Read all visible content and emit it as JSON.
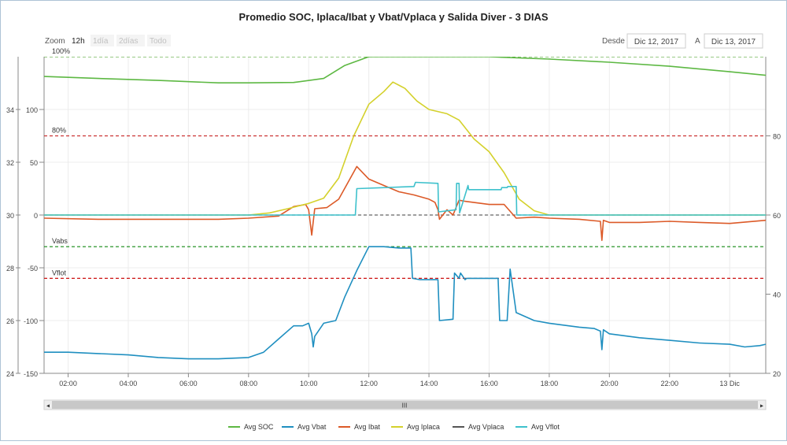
{
  "chart_data": {
    "type": "line",
    "title": "Promedio SOC, Iplaca/Ibat y Vbat/Vplaca y Salida Diver - 3 DIAS",
    "zoom": {
      "label": "Zoom",
      "options": [
        "12h",
        "1día",
        "2días",
        "Todo"
      ],
      "selected": "12h"
    },
    "range": {
      "from_label": "Desde",
      "from": "Dic 12, 2017",
      "to_label": "A",
      "to": "Dic 13, 2017"
    },
    "x_ticks": [
      "02:00",
      "04:00",
      "06:00",
      "08:00",
      "10:00",
      "12:00",
      "14:00",
      "16:00",
      "18:00",
      "20:00",
      "22:00",
      "13 Dic"
    ],
    "x_tick_hours": [
      2,
      4,
      6,
      8,
      10,
      12,
      14,
      16,
      18,
      20,
      22,
      24
    ],
    "xlim_hours": [
      1.2,
      25.2
    ],
    "y_axes": {
      "voltage": {
        "ylim": [
          24,
          36
        ],
        "ticks": [
          24,
          26,
          28,
          30,
          32,
          34
        ]
      },
      "current": {
        "ylim": [
          -150,
          150
        ],
        "ticks": [
          -150,
          -100,
          -50,
          0,
          50,
          100
        ]
      },
      "soc": {
        "ylim": [
          20,
          100
        ],
        "ticks": [
          20,
          40,
          60,
          80
        ]
      }
    },
    "plot_lines": [
      {
        "label": "100%",
        "axis": "soc",
        "value": 100,
        "color": "#5aaa3c"
      },
      {
        "label": "80%",
        "axis": "soc",
        "value": 80,
        "color": "#cc3333"
      },
      {
        "label": "Vabs",
        "axis": "voltage",
        "value": 28.8,
        "color": "#118811"
      },
      {
        "label": "Vflot",
        "axis": "voltage",
        "value": 27.6,
        "color": "#cc1111"
      },
      {
        "label": "",
        "axis": "current",
        "value": 0,
        "color": "#666666"
      }
    ],
    "series": [
      {
        "name": "Avg SOC",
        "color": "#5db843",
        "axis": "soc",
        "x": [
          1.2,
          3,
          5,
          7,
          8,
          9.5,
          10.5,
          11.2,
          12,
          12.5,
          13,
          16,
          18,
          20,
          22,
          24,
          25.2
        ],
        "y": [
          95,
          94.5,
          94,
          93.4,
          93.4,
          93.5,
          94.5,
          97.8,
          100,
          100,
          100,
          100,
          99.4,
          98.6,
          97.6,
          96.2,
          95.3
        ]
      },
      {
        "name": "Avg Vbat",
        "color": "#1f8fc0",
        "axis": "voltage",
        "x": [
          1.2,
          2,
          3,
          4,
          5,
          6,
          7,
          8,
          8.5,
          9,
          9.5,
          9.8,
          10,
          10.1,
          10.15,
          10.2,
          10.5,
          10.9,
          11.2,
          11.6,
          12,
          12.5,
          13,
          13.4,
          13.45,
          13.7,
          14,
          14.3,
          14.35,
          14.8,
          14.85,
          15,
          15.05,
          15.2,
          15.25,
          16.3,
          16.35,
          16.6,
          16.7,
          16.9,
          17.5,
          18,
          19,
          19.5,
          19.7,
          19.75,
          19.8,
          20,
          21,
          22,
          23,
          24,
          24.5,
          25,
          25.2
        ],
        "y": [
          24.8,
          24.8,
          24.75,
          24.7,
          24.6,
          24.55,
          24.55,
          24.6,
          24.8,
          25.3,
          25.8,
          25.8,
          25.9,
          25.5,
          25.0,
          25.4,
          25.9,
          26.0,
          26.9,
          27.9,
          28.8,
          28.8,
          28.75,
          28.75,
          27.6,
          27.55,
          27.55,
          27.55,
          26.0,
          26.05,
          27.8,
          27.6,
          27.8,
          27.55,
          27.6,
          27.6,
          26.0,
          26.0,
          27.95,
          26.3,
          26.0,
          25.9,
          25.75,
          25.7,
          25.6,
          24.9,
          25.65,
          25.5,
          25.35,
          25.25,
          25.15,
          25.1,
          25.0,
          25.05,
          25.1
        ]
      },
      {
        "name": "Avg Ibat",
        "color": "#dc5a28",
        "axis": "current",
        "x": [
          1.2,
          3,
          5,
          7,
          8,
          9,
          9.5,
          9.9,
          10,
          10.1,
          10.2,
          10.6,
          11,
          11.6,
          12,
          12.5,
          13,
          13.5,
          14,
          14.2,
          14.3,
          14.35,
          14.6,
          14.8,
          15,
          15.2,
          16,
          16.5,
          16.9,
          17.5,
          18,
          19,
          19.7,
          19.75,
          19.8,
          20,
          21,
          22,
          23,
          24,
          25.2
        ],
        "y": [
          -3,
          -4,
          -4,
          -4,
          -3,
          -1,
          8,
          10,
          5,
          -19,
          6,
          7,
          15,
          46,
          34,
          28,
          22,
          19,
          15,
          12,
          5,
          -4,
          5,
          0,
          14,
          13,
          10,
          10,
          -3,
          -2,
          -3,
          -4,
          -6,
          -24,
          -5,
          -7,
          -7,
          -6,
          -7,
          -8,
          -5
        ]
      },
      {
        "name": "Avg Iplaca",
        "color": "#d4d12c",
        "axis": "current",
        "x": [
          1.2,
          8,
          8.7,
          9.3,
          10,
          10.5,
          11,
          11.5,
          12,
          12.5,
          12.8,
          13.2,
          13.6,
          14,
          14.6,
          15,
          15.5,
          16,
          16.5,
          17,
          17.5,
          18,
          25.2
        ],
        "y": [
          0,
          0,
          2,
          6,
          11,
          16,
          35,
          75,
          105,
          117,
          126,
          120,
          108,
          100,
          96,
          90,
          72,
          60,
          40,
          15,
          4,
          0,
          0
        ]
      },
      {
        "name": "Avg Vplaca",
        "color": "#555555",
        "axis": "voltage",
        "x": [],
        "y": []
      },
      {
        "name": "Avg Vflot",
        "color": "#3ec1cc",
        "axis": "current",
        "x": [
          1.2,
          10.6,
          11.55,
          11.6,
          13.5,
          13.55,
          14.3,
          14.32,
          14.9,
          14.92,
          15,
          15.02,
          15.3,
          15.32,
          16.4,
          16.42,
          16.6,
          16.62,
          16.9,
          16.92,
          25.2
        ],
        "y": [
          0,
          0,
          0,
          25,
          27,
          31,
          30,
          3,
          5,
          30,
          30,
          2,
          28,
          24,
          24,
          26,
          26,
          27,
          27,
          0,
          0
        ]
      }
    ],
    "legend_position": "bottom",
    "grid": true
  },
  "scrollbar": {
    "thumb_glyph": "III",
    "left_arrow": "◂",
    "right_arrow": "▸"
  }
}
